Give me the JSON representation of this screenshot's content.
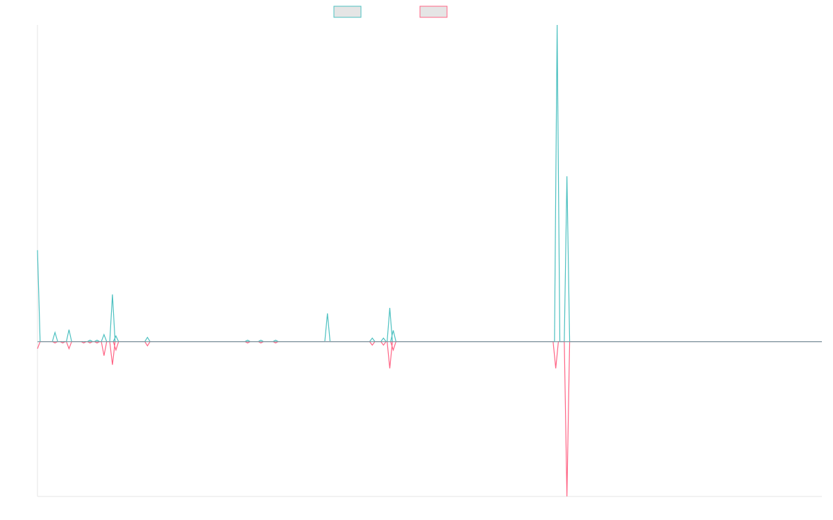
{
  "chart_data": {
    "type": "line",
    "title": "",
    "xlabel": "",
    "ylabel": "",
    "grid": false,
    "legend": {
      "position": "top-center"
    },
    "x_count": 113,
    "ylim": [
      -22,
      45
    ],
    "series": [
      {
        "color": "#4bc0c0",
        "fill": "#e5e5e5",
        "values": [
          13,
          0,
          0,
          0,
          0,
          0,
          0,
          0,
          0,
          0,
          0,
          0,
          0,
          0,
          0,
          0,
          0,
          0,
          0,
          0,
          0,
          0,
          0,
          0,
          0,
          0,
          0,
          0,
          0,
          0,
          0,
          0,
          0,
          0,
          0,
          0,
          0,
          0,
          0,
          0,
          0,
          0,
          0,
          0,
          0,
          0,
          0,
          0,
          0,
          0,
          0,
          0,
          0,
          0,
          0,
          0,
          0,
          0,
          0,
          0,
          0,
          0,
          0,
          0,
          0,
          0,
          0,
          0,
          0,
          0,
          0,
          0,
          0,
          0,
          0,
          0,
          0,
          0,
          0,
          0,
          0,
          0,
          0,
          0,
          0,
          0,
          0,
          0,
          0,
          0,
          0,
          0,
          0,
          0,
          0,
          0,
          0,
          0,
          0,
          0,
          0,
          0,
          0,
          0,
          0,
          0,
          0,
          0,
          0,
          0,
          0,
          0,
          0
        ],
        "spikes": [
          {
            "i": 0,
            "v": 13.0
          },
          {
            "i": 2.5,
            "v": 1.3
          },
          {
            "i": 4.5,
            "v": 1.7
          },
          {
            "i": 7.5,
            "v": 0.2
          },
          {
            "i": 8.5,
            "v": 0.2
          },
          {
            "i": 9.5,
            "v": 1.0
          },
          {
            "i": 10.7,
            "v": 6.7
          },
          {
            "i": 11.2,
            "v": 0.8
          },
          {
            "i": 15.7,
            "v": 0.6
          },
          {
            "i": 30.0,
            "v": 0.2
          },
          {
            "i": 31.9,
            "v": 0.2
          },
          {
            "i": 34.0,
            "v": 0.2
          },
          {
            "i": 41.4,
            "v": 4.0
          },
          {
            "i": 47.8,
            "v": 0.5
          },
          {
            "i": 49.4,
            "v": 0.5
          },
          {
            "i": 50.3,
            "v": 4.8
          },
          {
            "i": 50.8,
            "v": 1.6
          },
          {
            "i": 74.2,
            "v": 45.0
          },
          {
            "i": 75.6,
            "v": 23.5
          }
        ]
      },
      {
        "color": "#ff6384",
        "fill": "#e5e5e5",
        "spikes": [
          {
            "i": 0,
            "v": -1.0
          },
          {
            "i": 2.5,
            "v": -0.2
          },
          {
            "i": 3.6,
            "v": -0.2
          },
          {
            "i": 4.5,
            "v": -1.0
          },
          {
            "i": 6.6,
            "v": -0.2
          },
          {
            "i": 7.5,
            "v": -0.2
          },
          {
            "i": 8.5,
            "v": -0.2
          },
          {
            "i": 9.5,
            "v": -2.0
          },
          {
            "i": 10.7,
            "v": -3.3
          },
          {
            "i": 11.2,
            "v": -1.2
          },
          {
            "i": 15.7,
            "v": -0.6
          },
          {
            "i": 30.0,
            "v": -0.2
          },
          {
            "i": 31.9,
            "v": -0.2
          },
          {
            "i": 34.0,
            "v": -0.2
          },
          {
            "i": 47.8,
            "v": -0.5
          },
          {
            "i": 49.4,
            "v": -0.5
          },
          {
            "i": 50.3,
            "v": -3.8
          },
          {
            "i": 50.8,
            "v": -1.2
          },
          {
            "i": 74.0,
            "v": -3.8
          },
          {
            "i": 75.6,
            "v": -22.0
          }
        ]
      }
    ]
  }
}
